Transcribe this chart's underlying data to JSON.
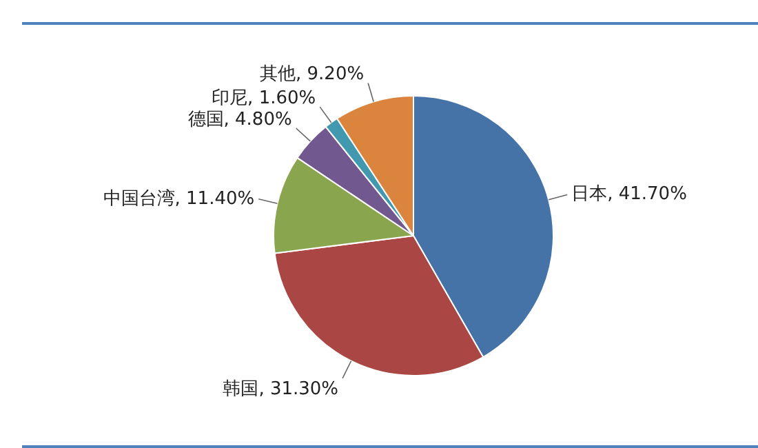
{
  "chart_data": {
    "type": "pie",
    "categories": [
      "日本",
      "韩国",
      "中国台湾",
      "德国",
      "印尼",
      "其他"
    ],
    "values": [
      41.7,
      31.3,
      11.4,
      4.8,
      1.6,
      9.2
    ],
    "value_labels": [
      "41.70%",
      "31.30%",
      "11.40%",
      "4.80%",
      "1.60%",
      "9.20%"
    ],
    "colors": [
      "#4572a7",
      "#aa4643",
      "#89a54e",
      "#71588f",
      "#4198af",
      "#db843d"
    ],
    "legend": false
  }
}
